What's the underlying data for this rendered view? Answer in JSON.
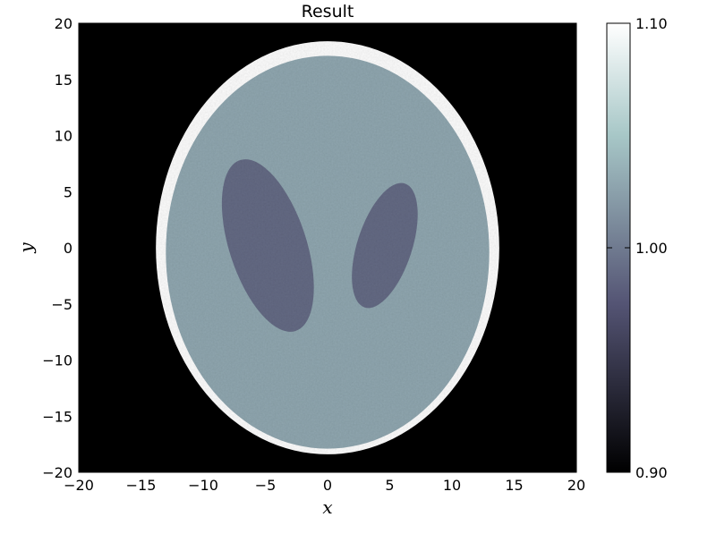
{
  "chart_data": {
    "type": "heatmap",
    "title": "Result",
    "xlabel": "x",
    "ylabel": "y",
    "xlim": [
      -20,
      20
    ],
    "ylim": [
      -20,
      20
    ],
    "x_ticks": [
      -20,
      -15,
      -10,
      -5,
      0,
      5,
      10,
      15,
      20
    ],
    "y_ticks": [
      -20,
      -15,
      -10,
      -5,
      0,
      5,
      10,
      15,
      20
    ],
    "x_tick_labels": [
      "−20",
      "−15",
      "−10",
      "−5",
      "0",
      "5",
      "10",
      "15",
      "20"
    ],
    "y_tick_labels": [
      "−20",
      "−15",
      "−10",
      "−5",
      "0",
      "5",
      "10",
      "15",
      "20"
    ],
    "colormap": "bone",
    "colorbar": {
      "min": 0.9,
      "max": 1.1,
      "ticks": [
        0.9,
        1.0,
        1.1
      ],
      "tick_labels": [
        "0.90",
        "1.00",
        "1.10"
      ]
    },
    "background_value": 0.9,
    "shapes": [
      {
        "name": "outer-shell",
        "cx": 0,
        "cy": 0,
        "rx": 13.8,
        "ry": 18.4,
        "value": 1.1
      },
      {
        "name": "inner-region",
        "cx": 0,
        "cy": -0.4,
        "rx": 13.0,
        "ry": 17.5,
        "value": 1.03
      },
      {
        "name": "left-dark-lobe",
        "cx": -4.8,
        "cy": 0.2,
        "rx": 3.1,
        "ry": 8.0,
        "angle_deg": 18,
        "value": 0.99
      },
      {
        "name": "right-dark-lobe",
        "cx": 4.6,
        "cy": 0.2,
        "rx": 2.2,
        "ry": 5.8,
        "angle_deg": -18,
        "value": 0.99
      }
    ]
  }
}
